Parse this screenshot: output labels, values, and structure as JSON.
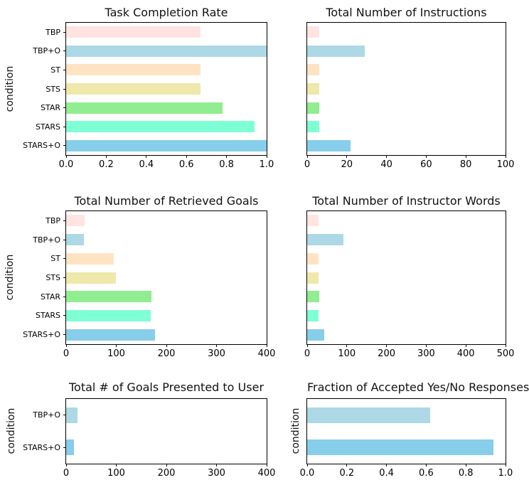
{
  "figure": {
    "background": "#ffffff",
    "ylabel_text": "condition"
  },
  "palette": {
    "TBP": "#ffe4e1",
    "TBP+O": "#add8e6",
    "ST": "#ffe4c4",
    "STS": "#eee8aa",
    "STAR": "#90ee90",
    "STARS": "#7fffd4",
    "STARS+O": "#87ceeb"
  },
  "chart_data": [
    {
      "type": "bar",
      "orientation": "horizontal",
      "title": "Task Completion Rate",
      "ylabel": "condition",
      "categories": [
        "TBP",
        "TBP+O",
        "ST",
        "STS",
        "STAR",
        "STARS",
        "STARS+O"
      ],
      "values": [
        0.67,
        1.0,
        0.67,
        0.67,
        0.78,
        0.94,
        1.0
      ],
      "xlim": [
        0,
        1.0
      ],
      "xticks": [
        "0.0",
        "0.2",
        "0.4",
        "0.6",
        "0.8",
        "1.0"
      ],
      "show_category_labels": true,
      "grid": false,
      "legend": "none"
    },
    {
      "type": "bar",
      "orientation": "horizontal",
      "title": "Total Number of Instructions",
      "ylabel": "",
      "categories": [
        "TBP",
        "TBP+O",
        "ST",
        "STS",
        "STAR",
        "STARS",
        "STARS+O"
      ],
      "values": [
        6,
        29,
        6,
        6,
        6,
        6,
        22
      ],
      "xlim": [
        0,
        100
      ],
      "xticks": [
        "0",
        "20",
        "40",
        "60",
        "80",
        "100"
      ],
      "show_category_labels": false,
      "grid": false,
      "legend": "none"
    },
    {
      "type": "bar",
      "orientation": "horizontal",
      "title": "Total Number of Retrieved Goals",
      "ylabel": "condition",
      "categories": [
        "TBP",
        "TBP+O",
        "ST",
        "STS",
        "STAR",
        "STARS",
        "STARS+O"
      ],
      "values": [
        37,
        36,
        95,
        99,
        170,
        169,
        177
      ],
      "xlim": [
        0,
        400
      ],
      "xticks": [
        "0",
        "100",
        "200",
        "300",
        "400"
      ],
      "show_category_labels": true,
      "grid": false,
      "legend": "none"
    },
    {
      "type": "bar",
      "orientation": "horizontal",
      "title": "Total Number of Instructor Words",
      "ylabel": "",
      "categories": [
        "TBP",
        "TBP+O",
        "ST",
        "STS",
        "STAR",
        "STARS",
        "STARS+O"
      ],
      "values": [
        29,
        92,
        29,
        29,
        30,
        29,
        43
      ],
      "xlim": [
        0,
        500
      ],
      "xticks": [
        "0",
        "100",
        "200",
        "300",
        "400",
        "500"
      ],
      "show_category_labels": false,
      "grid": false,
      "legend": "none"
    },
    {
      "type": "bar",
      "orientation": "horizontal",
      "title": "Total # of Goals Presented to User",
      "ylabel": "condition",
      "categories": [
        "TBP+O",
        "STARS+O"
      ],
      "values": [
        22,
        16
      ],
      "xlim": [
        0,
        400
      ],
      "xticks": [
        "0",
        "100",
        "200",
        "300",
        "400"
      ],
      "show_category_labels": true,
      "grid": false,
      "legend": "none"
    },
    {
      "type": "bar",
      "orientation": "horizontal",
      "title": "Fraction of Accepted Yes/No Responses",
      "ylabel": "condition",
      "categories": [
        "TBP+O",
        "STARS+O"
      ],
      "values": [
        0.62,
        0.94
      ],
      "xlim": [
        0,
        1.0
      ],
      "xticks": [
        "0.0",
        "0.2",
        "0.4",
        "0.6",
        "0.8",
        "1.0"
      ],
      "show_category_labels": false,
      "grid": false,
      "legend": "none"
    }
  ]
}
